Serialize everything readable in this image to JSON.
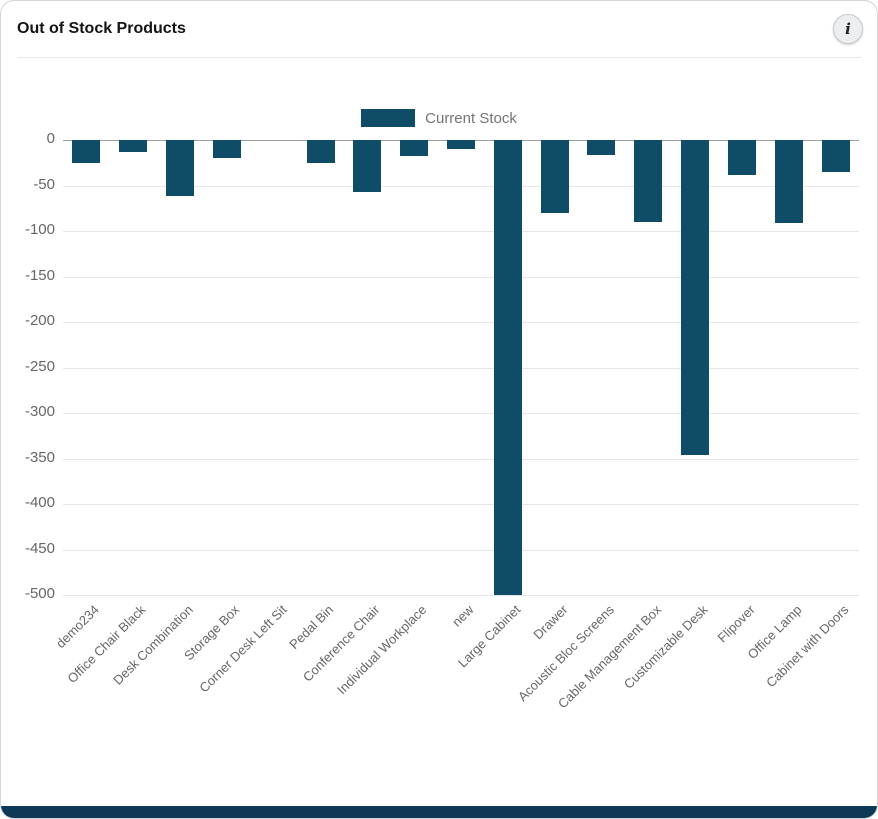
{
  "card": {
    "title": "Out of Stock Products",
    "info_icon": "i"
  },
  "colors": {
    "bar": "#0f4c67",
    "grid": "#e6e6e6",
    "axis": "#9e9e9e",
    "tick_label": "#666666",
    "legend_text": "#757575",
    "footer": "#0d3856"
  },
  "chart_data": {
    "type": "bar",
    "title": "Out of Stock Products",
    "xlabel": "",
    "ylabel": "",
    "ylim": [
      -500,
      0
    ],
    "yticks": [
      0,
      -50,
      -100,
      -150,
      -200,
      -250,
      -300,
      -350,
      -400,
      -450,
      -500
    ],
    "grid": true,
    "legend_position": "top",
    "categories": [
      "demo234",
      "Office Chair Black",
      "Desk Combination",
      "Storage Box",
      "Corner Desk Left Sit",
      "Pedal Bin",
      "Conference Chair",
      "Individual Workplace",
      "new",
      "Large Cabinet",
      "Drawer",
      "Acoustic Bloc Screens",
      "Cable Management Box",
      "Customizable Desk",
      "Flipover",
      "Office Lamp",
      "Cabinet with Doors"
    ],
    "series": [
      {
        "name": "Current Stock",
        "values": [
          -25,
          -13,
          -61,
          -20,
          0,
          -25,
          -57,
          -18,
          -10,
          -500,
          -80,
          -17,
          -90,
          -346,
          -38,
          -91,
          -35
        ]
      }
    ]
  }
}
